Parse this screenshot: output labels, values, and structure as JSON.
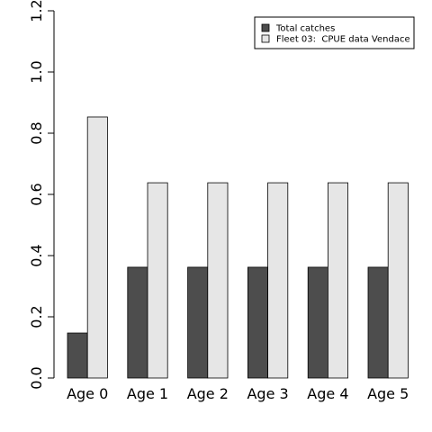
{
  "chart_data": {
    "type": "bar",
    "categories": [
      "Age 0",
      "Age 1",
      "Age 2",
      "Age 3",
      "Age 4",
      "Age 5"
    ],
    "series": [
      {
        "name": "Total catches",
        "values": [
          0.147,
          0.362,
          0.362,
          0.362,
          0.362,
          0.362
        ],
        "color": "#4d4d4d"
      },
      {
        "name": "Fleet 03:  CPUE data Vendace",
        "values": [
          0.853,
          0.638,
          0.638,
          0.638,
          0.638,
          0.638
        ],
        "color": "#e6e6e6"
      }
    ],
    "ylim": [
      0,
      1.2
    ],
    "yticks": [
      "0.0",
      "0.2",
      "0.4",
      "0.6",
      "0.8",
      "1.0",
      "1.2"
    ],
    "legend_position": "top-right",
    "grid": false
  }
}
